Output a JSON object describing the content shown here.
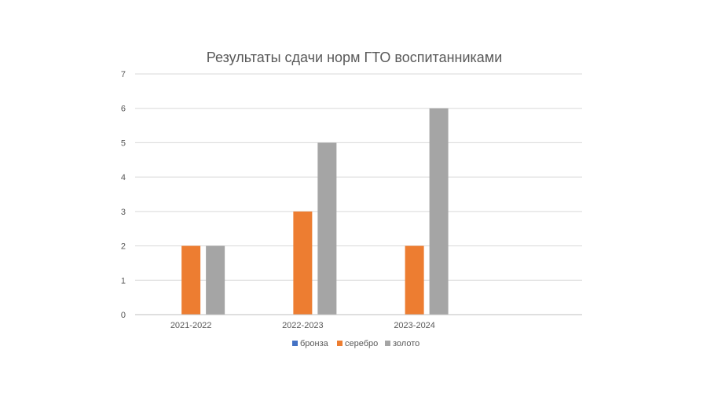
{
  "chart_data": {
    "type": "bar",
    "title": "Результаты сдачи норм ГТО воспитанниками",
    "categories": [
      "2021-2022",
      "2022-2023",
      "2023-2024",
      ""
    ],
    "series": [
      {
        "name": "бронза",
        "color": "#4472c4",
        "values": [
          0,
          0,
          0,
          0
        ]
      },
      {
        "name": "серебро",
        "color": "#ed7d31",
        "values": [
          2,
          3,
          2,
          0
        ]
      },
      {
        "name": "золото",
        "color": "#a5a5a5",
        "values": [
          2,
          5,
          6,
          0
        ]
      }
    ],
    "ylim": [
      0,
      7
    ],
    "yticks": [
      "0",
      "1",
      "2",
      "3",
      "4",
      "5",
      "6",
      "7"
    ],
    "grid": true,
    "legend": "bottom"
  }
}
